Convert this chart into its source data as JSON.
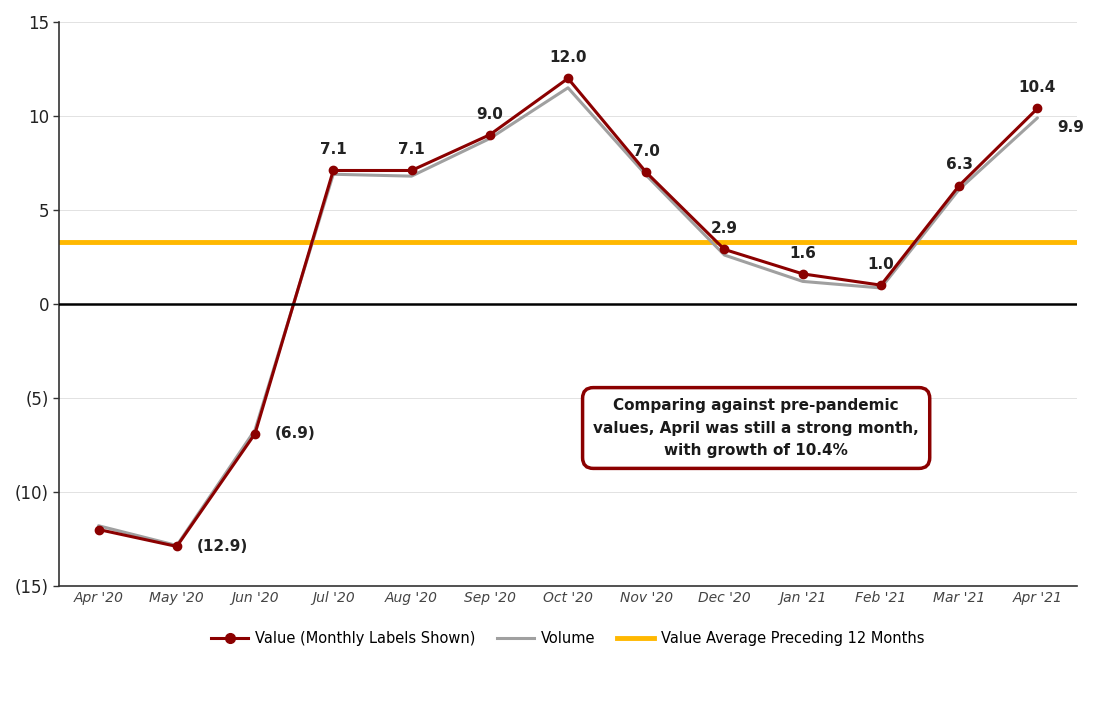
{
  "months": [
    "Apr '20",
    "May '20",
    "Jun '20",
    "Jul '20",
    "Aug '20",
    "Sep '20",
    "Oct '20",
    "Nov '20",
    "Dec '20",
    "Jan '21",
    "Feb '21",
    "Mar '21",
    "Apr '21"
  ],
  "value_data": [
    -12.0,
    -12.9,
    -6.9,
    7.1,
    7.1,
    9.0,
    12.0,
    7.0,
    2.9,
    1.6,
    1.0,
    6.3,
    10.4
  ],
  "volume_data": [
    -11.8,
    -12.85,
    -6.7,
    6.9,
    6.8,
    8.8,
    11.5,
    6.85,
    2.6,
    1.2,
    0.85,
    6.1,
    9.9
  ],
  "value_labels": [
    null,
    "(12.9)",
    "(6.9)",
    "7.1",
    "7.1",
    "9.0",
    "12.0",
    "7.0",
    "2.9",
    "1.6",
    "1.0",
    "6.3",
    "10.4"
  ],
  "volume_last_label": "9.9",
  "avg_line_value": 3.3,
  "value_color": "#8B0000",
  "volume_color": "#A0A0A0",
  "avg_color": "#FFB800",
  "ylim": [
    -15,
    15
  ],
  "yticks": [
    -15,
    -10,
    -5,
    0,
    5,
    10,
    15
  ],
  "ytick_labels": [
    "(15)",
    "(10)",
    "(5)",
    "0",
    "5",
    "10",
    "15"
  ],
  "annotation_text": "Comparing against pre-pandemic\nvalues, April was still a strong month,\nwith growth of 10.4%",
  "annotation_box_color": "#8B0000",
  "background_color": "#FFFFFF",
  "legend_value_label": "Value (Monthly Labels Shown)",
  "legend_volume_label": "Volume",
  "legend_avg_label": "Value Average Preceding 12 Months"
}
